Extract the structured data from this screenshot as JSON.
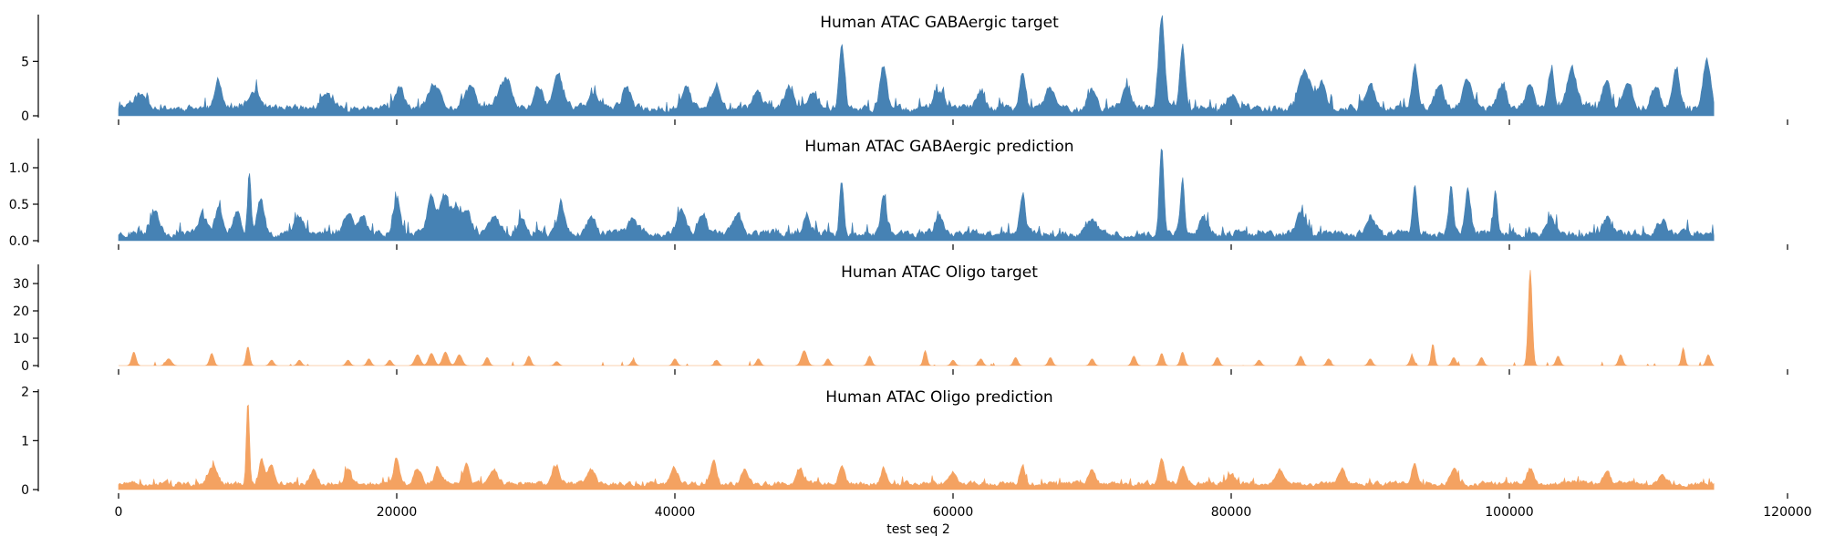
{
  "chart_data": {
    "type": "area",
    "xlabel": "test seq 2",
    "x_range": [
      0,
      114700
    ],
    "xlim": [
      0,
      120000
    ],
    "x_ticks": [
      0,
      20000,
      40000,
      60000,
      80000,
      100000,
      120000
    ],
    "panels": [
      {
        "title": "Human ATAC GABAergic target",
        "color": "#4682b4",
        "ylim": [
          0,
          9.3
        ],
        "y_ticks": [
          0,
          5
        ],
        "baseline": 0.7,
        "noise": 0.6,
        "peaks": [
          [
            1500,
            1.3,
            600
          ],
          [
            7200,
            2.8,
            250
          ],
          [
            9800,
            1.8,
            400
          ],
          [
            15000,
            1.4,
            400
          ],
          [
            20200,
            2.1,
            300
          ],
          [
            22700,
            2.3,
            400
          ],
          [
            25300,
            2.0,
            400
          ],
          [
            27500,
            1.6,
            400
          ],
          [
            28000,
            2.2,
            300
          ],
          [
            30200,
            2.4,
            300
          ],
          [
            31600,
            3.5,
            350
          ],
          [
            34200,
            1.5,
            400
          ],
          [
            36500,
            2.2,
            300
          ],
          [
            40800,
            2.3,
            300
          ],
          [
            43000,
            2.6,
            300
          ],
          [
            46000,
            2.0,
            300
          ],
          [
            48200,
            2.2,
            300
          ],
          [
            50000,
            1.8,
            300
          ],
          [
            52000,
            6.3,
            200
          ],
          [
            55000,
            4.4,
            250
          ],
          [
            59000,
            1.7,
            300
          ],
          [
            62000,
            1.7,
            300
          ],
          [
            65000,
            3.6,
            220
          ],
          [
            67000,
            2.2,
            300
          ],
          [
            70000,
            2.0,
            300
          ],
          [
            72500,
            2.2,
            300
          ],
          [
            75000,
            9.0,
            220
          ],
          [
            76500,
            6.1,
            180
          ],
          [
            80000,
            1.4,
            300
          ],
          [
            85300,
            3.8,
            400
          ],
          [
            86500,
            2.5,
            300
          ],
          [
            90000,
            2.6,
            300
          ],
          [
            93200,
            4.5,
            200
          ],
          [
            95000,
            2.6,
            300
          ],
          [
            97000,
            3.2,
            300
          ],
          [
            99500,
            2.4,
            300
          ],
          [
            101500,
            2.6,
            300
          ],
          [
            103000,
            4.0,
            220
          ],
          [
            104500,
            3.8,
            350
          ],
          [
            107000,
            2.6,
            300
          ],
          [
            108500,
            2.5,
            300
          ],
          [
            110500,
            2.3,
            300
          ],
          [
            112000,
            3.8,
            250
          ],
          [
            114200,
            5.0,
            250
          ]
        ],
        "seed": 11
      },
      {
        "title": "Human ATAC GABAergic prediction",
        "color": "#4682b4",
        "ylim": [
          0,
          1.4
        ],
        "y_ticks": [
          0,
          0.5,
          1.0
        ],
        "y_tick_labels": [
          "0.0",
          "0.5",
          "1.0"
        ],
        "baseline": 0.1,
        "noise": 0.09,
        "peaks": [
          [
            2600,
            0.38,
            300
          ],
          [
            6000,
            0.3,
            300
          ],
          [
            7200,
            0.35,
            300
          ],
          [
            8500,
            0.35,
            300
          ],
          [
            9400,
            0.92,
            120
          ],
          [
            10200,
            0.55,
            250
          ],
          [
            13000,
            0.3,
            300
          ],
          [
            16500,
            0.32,
            300
          ],
          [
            17500,
            0.3,
            300
          ],
          [
            20000,
            0.55,
            250
          ],
          [
            22500,
            0.55,
            300
          ],
          [
            23400,
            0.57,
            300
          ],
          [
            24200,
            0.4,
            300
          ],
          [
            25000,
            0.38,
            300
          ],
          [
            27000,
            0.3,
            300
          ],
          [
            29000,
            0.25,
            300
          ],
          [
            31800,
            0.45,
            250
          ],
          [
            34000,
            0.25,
            300
          ],
          [
            37000,
            0.25,
            300
          ],
          [
            40500,
            0.35,
            300
          ],
          [
            42000,
            0.33,
            300
          ],
          [
            44500,
            0.3,
            300
          ],
          [
            49500,
            0.33,
            250
          ],
          [
            52000,
            0.82,
            150
          ],
          [
            55000,
            0.58,
            200
          ],
          [
            59000,
            0.25,
            300
          ],
          [
            65000,
            0.65,
            200
          ],
          [
            70000,
            0.22,
            300
          ],
          [
            75000,
            1.35,
            160
          ],
          [
            76500,
            0.88,
            150
          ],
          [
            78000,
            0.28,
            250
          ],
          [
            85000,
            0.32,
            300
          ],
          [
            90000,
            0.28,
            300
          ],
          [
            93200,
            0.75,
            150
          ],
          [
            95800,
            0.72,
            150
          ],
          [
            97000,
            0.65,
            200
          ],
          [
            99000,
            0.62,
            160
          ],
          [
            103000,
            0.25,
            300
          ],
          [
            107000,
            0.22,
            300
          ],
          [
            111000,
            0.22,
            300
          ]
        ],
        "seed": 23
      },
      {
        "title": "Human ATAC Oligo target",
        "color": "#f4a261",
        "ylim": [
          0,
          37
        ],
        "y_ticks": [
          0,
          10,
          20,
          30
        ],
        "baseline": 0.0,
        "noise": 0.0,
        "sparse": true,
        "peaks": [
          [
            1100,
            5.0,
            150
          ],
          [
            3600,
            2.5,
            200
          ],
          [
            6700,
            4.5,
            150
          ],
          [
            9300,
            7.0,
            130
          ],
          [
            11000,
            2.0,
            150
          ],
          [
            13000,
            2.0,
            150
          ],
          [
            16500,
            2.0,
            150
          ],
          [
            18000,
            2.5,
            150
          ],
          [
            19500,
            2.0,
            150
          ],
          [
            21500,
            4.0,
            200
          ],
          [
            22500,
            4.5,
            200
          ],
          [
            23500,
            5.0,
            200
          ],
          [
            24500,
            4.0,
            200
          ],
          [
            26500,
            3.0,
            150
          ],
          [
            29500,
            3.5,
            150
          ],
          [
            31500,
            1.5,
            150
          ],
          [
            37000,
            2.0,
            150
          ],
          [
            40000,
            2.5,
            150
          ],
          [
            43000,
            2.0,
            150
          ],
          [
            46000,
            2.5,
            150
          ],
          [
            49300,
            5.5,
            200
          ],
          [
            51000,
            2.5,
            150
          ],
          [
            54000,
            3.5,
            150
          ],
          [
            58000,
            5.5,
            130
          ],
          [
            60000,
            2.0,
            150
          ],
          [
            62000,
            2.5,
            150
          ],
          [
            64500,
            3.0,
            150
          ],
          [
            67000,
            3.0,
            150
          ],
          [
            70000,
            2.5,
            150
          ],
          [
            73000,
            3.5,
            150
          ],
          [
            75000,
            4.5,
            150
          ],
          [
            76500,
            5.0,
            150
          ],
          [
            79000,
            3.0,
            150
          ],
          [
            82000,
            2.0,
            150
          ],
          [
            85000,
            3.5,
            150
          ],
          [
            87000,
            2.5,
            150
          ],
          [
            90000,
            2.5,
            150
          ],
          [
            93000,
            3.5,
            150
          ],
          [
            94500,
            8.0,
            120
          ],
          [
            96000,
            3.0,
            150
          ],
          [
            98000,
            3.0,
            150
          ],
          [
            101500,
            35.0,
            140
          ],
          [
            103500,
            3.5,
            150
          ],
          [
            108000,
            4.0,
            150
          ],
          [
            112500,
            6.5,
            120
          ],
          [
            114300,
            4.0,
            150
          ]
        ],
        "seed": 37
      },
      {
        "title": "Human ATAC Oligo prediction",
        "color": "#f4a261",
        "ylim": [
          0,
          2.05
        ],
        "y_ticks": [
          0,
          1,
          2
        ],
        "baseline": 0.12,
        "noise": 0.09,
        "peaks": [
          [
            6800,
            0.4,
            300
          ],
          [
            9300,
            1.95,
            110
          ],
          [
            10300,
            0.55,
            200
          ],
          [
            11000,
            0.45,
            200
          ],
          [
            14000,
            0.3,
            250
          ],
          [
            16500,
            0.3,
            250
          ],
          [
            20000,
            0.6,
            200
          ],
          [
            21500,
            0.35,
            250
          ],
          [
            23000,
            0.35,
            250
          ],
          [
            25000,
            0.45,
            200
          ],
          [
            27000,
            0.3,
            250
          ],
          [
            31500,
            0.4,
            250
          ],
          [
            34000,
            0.3,
            250
          ],
          [
            40000,
            0.35,
            250
          ],
          [
            42800,
            0.6,
            200
          ],
          [
            45000,
            0.35,
            250
          ],
          [
            49000,
            0.35,
            250
          ],
          [
            52000,
            0.42,
            200
          ],
          [
            55000,
            0.35,
            200
          ],
          [
            60000,
            0.3,
            250
          ],
          [
            65000,
            0.42,
            200
          ],
          [
            70000,
            0.3,
            250
          ],
          [
            75000,
            0.58,
            200
          ],
          [
            76500,
            0.4,
            200
          ],
          [
            80000,
            0.25,
            250
          ],
          [
            83500,
            0.3,
            250
          ],
          [
            88000,
            0.3,
            250
          ],
          [
            93200,
            0.45,
            200
          ],
          [
            96000,
            0.35,
            250
          ],
          [
            101500,
            0.35,
            250
          ],
          [
            107000,
            0.25,
            250
          ],
          [
            111000,
            0.25,
            250
          ]
        ],
        "seed": 51
      }
    ]
  }
}
